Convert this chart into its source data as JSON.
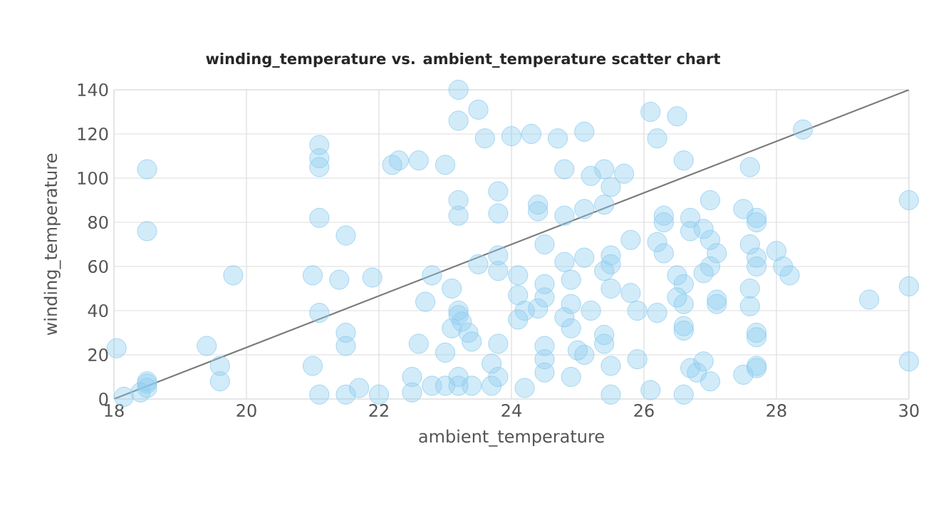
{
  "chart_data": {
    "type": "scatter",
    "title": "winding_temperature vs. ambient_temperature scatter chart",
    "xlabel": "ambient_temperature",
    "ylabel": "winding_temperature",
    "xlim": [
      18,
      30
    ],
    "xticks": [
      18,
      20,
      22,
      24,
      26,
      28,
      30
    ],
    "ylim": [
      0,
      140
    ],
    "yticks": [
      0,
      20,
      40,
      60,
      80,
      100,
      120,
      140
    ],
    "grid": true,
    "series": [
      {
        "marker": "circle",
        "color": "#8ecdf0",
        "x": [
          18.04,
          18.15,
          18.4,
          18.5,
          18.5,
          18.5,
          18.5,
          18.5,
          19.4,
          19.6,
          19.6,
          19.8,
          21.0,
          21.0,
          21.1,
          21.1,
          21.1,
          21.1,
          21.1,
          21.1,
          21.4,
          21.5,
          21.5,
          21.5,
          21.5,
          21.7,
          21.9,
          22.0,
          22.2,
          22.3,
          22.6,
          23.0,
          22.5,
          22.5,
          22.6,
          22.7,
          22.8,
          22.8,
          23.0,
          23.2,
          23.2,
          23.0,
          23.1,
          23.1,
          23.2,
          23.2,
          23.2,
          23.2,
          23.2,
          23.2,
          23.25,
          23.35,
          23.4,
          23.4,
          23.5,
          23.6,
          23.7,
          23.7,
          23.8,
          23.8,
          23.8,
          23.5,
          23.8,
          23.8,
          23.8,
          24.0,
          24.1,
          24.1,
          24.1,
          24.2,
          24.2,
          24.3,
          24.4,
          24.4,
          24.5,
          24.5,
          24.5,
          24.4,
          24.5,
          24.5,
          24.5,
          24.7,
          24.8,
          24.8,
          24.8,
          24.9,
          24.9,
          24.8,
          24.9,
          24.9,
          25.1,
          25.2,
          25.1,
          25.1,
          25.2,
          25.0,
          25.1,
          25.4,
          25.5,
          25.4,
          25.5,
          25.5,
          25.4,
          25.5,
          25.4,
          25.4,
          25.5,
          25.5,
          25.7,
          25.8,
          25.8,
          25.9,
          25.9,
          26.1,
          26.2,
          26.3,
          26.3,
          26.2,
          26.3,
          26.2,
          26.1,
          26.5,
          26.6,
          26.7,
          26.7,
          26.5,
          26.6,
          26.5,
          26.6,
          26.6,
          26.6,
          26.7,
          26.8,
          26.6,
          27.0,
          26.9,
          27.0,
          27.1,
          27.0,
          26.9,
          27.1,
          27.1,
          26.9,
          27.0,
          27.5,
          27.6,
          27.7,
          27.7,
          27.6,
          27.7,
          27.7,
          27.6,
          27.6,
          27.7,
          27.7,
          27.7,
          27.7,
          27.5,
          28.0,
          28.1,
          28.2,
          28.4,
          29.4,
          30.0,
          30.0,
          30.0
        ],
        "values": [
          23,
          1,
          3,
          5,
          7,
          8,
          104,
          76,
          24,
          15,
          8,
          56,
          56,
          15,
          115,
          109,
          105,
          82,
          39,
          2,
          54,
          74,
          30,
          24,
          2,
          5,
          55,
          2,
          106,
          108,
          108,
          106,
          10,
          3,
          25,
          44,
          56,
          6,
          6,
          6,
          10,
          21,
          50,
          32,
          126,
          140,
          90,
          83,
          40,
          38,
          35,
          30,
          26,
          6,
          131,
          118,
          16,
          6,
          25,
          65,
          58,
          61,
          94,
          84,
          10,
          119,
          56,
          47,
          36,
          40,
          5,
          120,
          88,
          85,
          70,
          52,
          46,
          41,
          24,
          18,
          12,
          118,
          104,
          83,
          62,
          54,
          43,
          37,
          32,
          10,
          121,
          101,
          86,
          64,
          40,
          22,
          20,
          104,
          96,
          88,
          65,
          61,
          58,
          50,
          29,
          25,
          15,
          2,
          102,
          72,
          48,
          40,
          18,
          130,
          118,
          83,
          80,
          71,
          66,
          39,
          4,
          128,
          108,
          82,
          76,
          56,
          52,
          46,
          43,
          33,
          31,
          14,
          12,
          2,
          90,
          77,
          72,
          66,
          60,
          57,
          45,
          43,
          17,
          8,
          86,
          105,
          82,
          80,
          70,
          64,
          60,
          50,
          42,
          30,
          28,
          15,
          14,
          11,
          67,
          60,
          56,
          122,
          45,
          90,
          51,
          17
        ]
      },
      {
        "type": "line",
        "color": "#7a7a7a",
        "x": [
          18,
          30
        ],
        "values": [
          0,
          140
        ]
      }
    ]
  }
}
